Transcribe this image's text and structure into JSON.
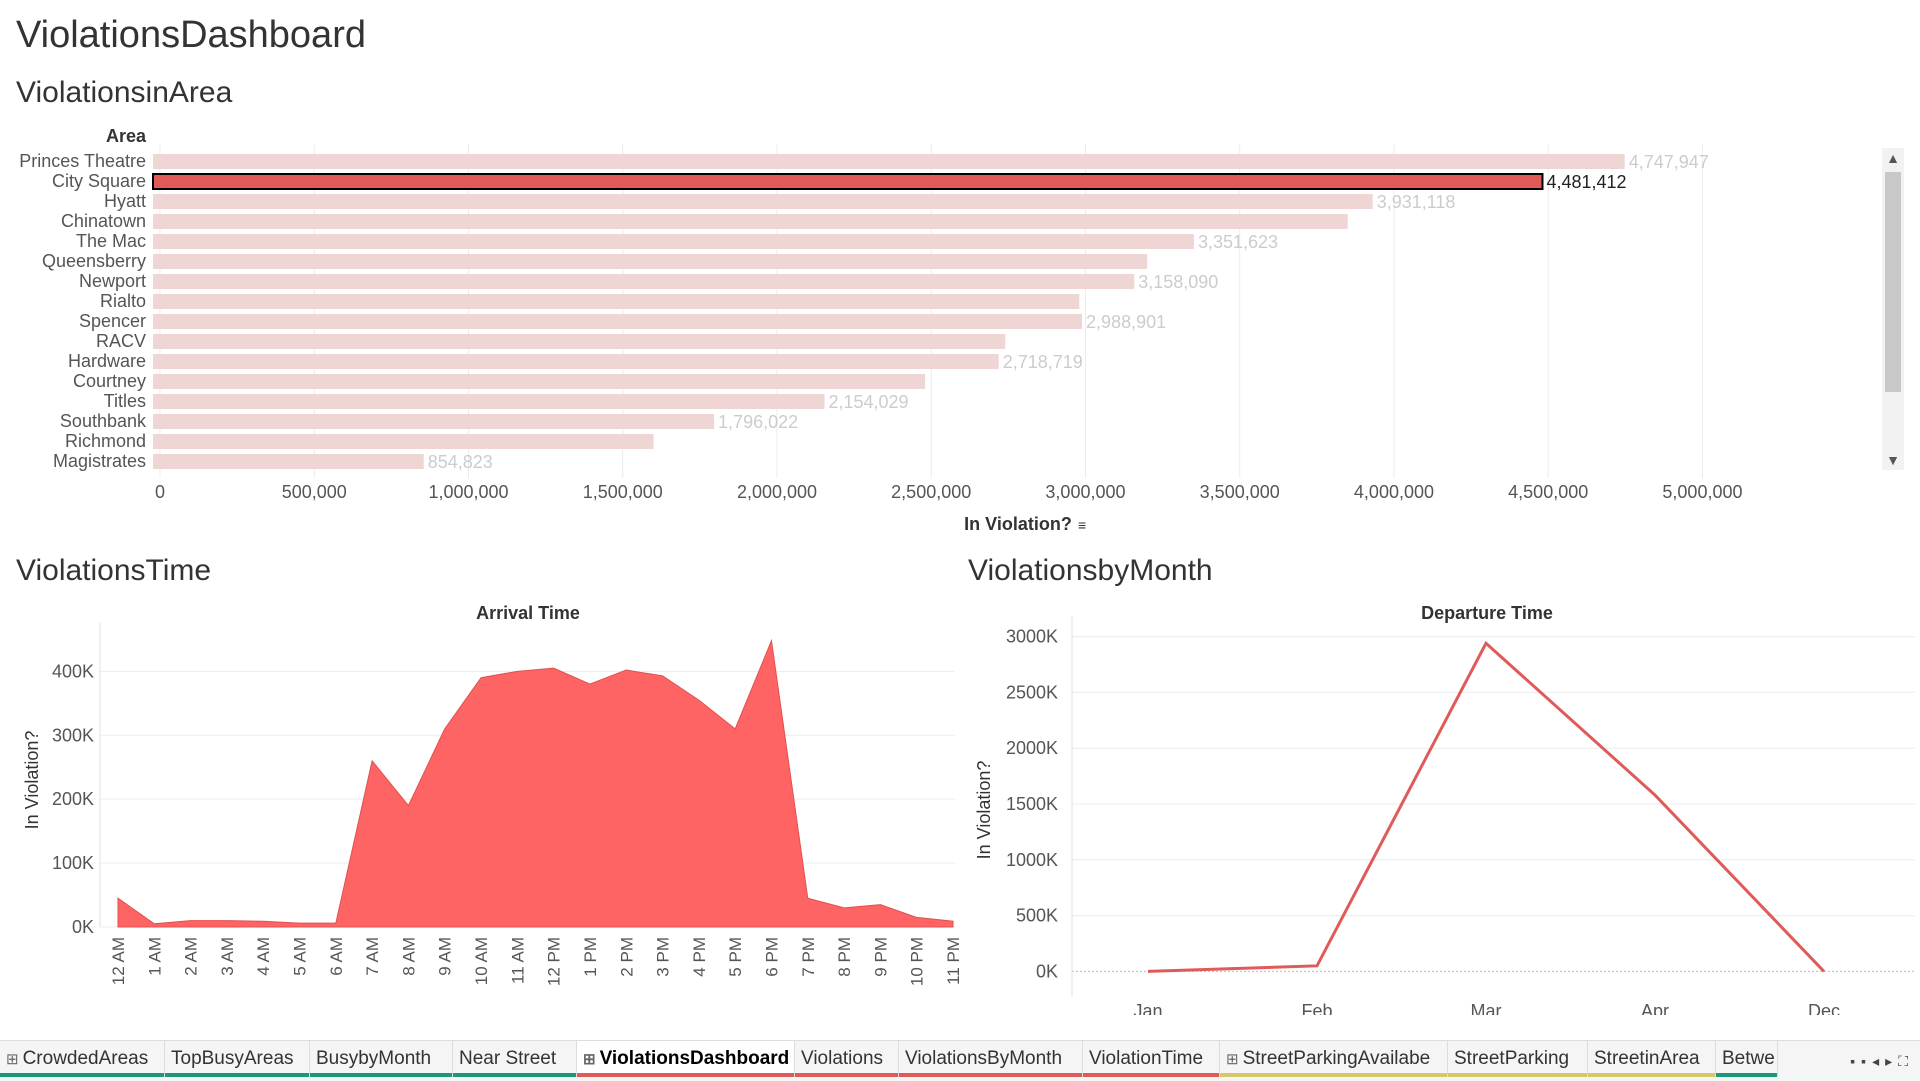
{
  "dashboard_title": "ViolationsDashboard",
  "panels": {
    "area_title": "ViolationsinArea",
    "time_title": "ViolationsTime",
    "month_title": "ViolationsbyMonth"
  },
  "colors": {
    "accent": "#e05a5a",
    "area_fill": "#ff6464",
    "bar_faded": "#f0d5d5",
    "label_faded": "#cccccc"
  },
  "chart_data": [
    {
      "type": "bar",
      "orientation": "horizontal",
      "row_header": "Area",
      "xlabel": "In Violation?",
      "categories": [
        "Princes Theatre",
        "City Square",
        "Hyatt",
        "Chinatown",
        "The Mac",
        "Queensberry",
        "Newport",
        "Rialto",
        "Spencer",
        "RACV",
        "Hardware",
        "Courtney",
        "Titles",
        "Southbank",
        "Richmond",
        "Magistrates"
      ],
      "values": [
        4747947,
        4481412,
        3931118,
        3850000,
        3351623,
        3200000,
        3158090,
        2980000,
        2988901,
        2740000,
        2718719,
        2480000,
        2154029,
        1796022,
        1600000,
        854823
      ],
      "value_labels": [
        "4,747,947",
        "4,481,412",
        "3,931,118",
        "",
        "3,351,623",
        "",
        "3,158,090",
        "",
        "2,988,901",
        "",
        "2,718,719",
        "",
        "2,154,029",
        "1,796,022",
        "",
        "854,823"
      ],
      "highlighted": "City Square",
      "xlim": [
        0,
        5300000
      ],
      "xticks": [
        0,
        500000,
        1000000,
        1500000,
        2000000,
        2500000,
        3000000,
        3500000,
        4000000,
        4500000,
        5000000
      ],
      "xtick_labels": [
        "0",
        "500,000",
        "1,000,000",
        "1,500,000",
        "2,000,000",
        "2,500,000",
        "3,000,000",
        "3,500,000",
        "4,000,000",
        "4,500,000",
        "5,000,000"
      ],
      "grid": true
    },
    {
      "type": "area",
      "title": "Arrival Time",
      "ylabel": "In Violation?",
      "x": [
        "12 AM",
        "1 AM",
        "2 AM",
        "3 AM",
        "4 AM",
        "5 AM",
        "6 AM",
        "7 AM",
        "8 AM",
        "9 AM",
        "10 AM",
        "11 AM",
        "12 PM",
        "1 PM",
        "2 PM",
        "3 PM",
        "4 PM",
        "5 PM",
        "6 PM",
        "7 PM",
        "8 PM",
        "9 PM",
        "10 PM",
        "11 PM"
      ],
      "values": [
        45000,
        5000,
        10000,
        10000,
        9000,
        6000,
        6000,
        260000,
        190000,
        310000,
        390000,
        400000,
        405000,
        380000,
        402000,
        393000,
        355000,
        310000,
        448000,
        45000,
        30000,
        35000,
        15000,
        9000
      ],
      "ylim": [
        0,
        460000
      ],
      "yticks": [
        0,
        100000,
        200000,
        300000,
        400000
      ],
      "ytick_labels": [
        "0K",
        "100K",
        "200K",
        "300K",
        "400K"
      ],
      "grid": true
    },
    {
      "type": "line",
      "title": "Departure Time",
      "ylabel": "In Violation?",
      "x": [
        "Jan",
        "Feb",
        "Mar",
        "Apr",
        "Dec"
      ],
      "values": [
        0,
        50000,
        2940000,
        1580000,
        0
      ],
      "ylim": [
        -50000,
        3050000
      ],
      "yticks": [
        0,
        500000,
        1000000,
        1500000,
        2000000,
        2500000,
        3000000
      ],
      "ytick_labels": [
        "0K",
        "500K",
        "1000K",
        "1500K",
        "2000K",
        "2500K",
        "3000K"
      ],
      "grid": true
    }
  ],
  "tabs": [
    {
      "label": "CrowdedAreas",
      "color": "#1a9a7a",
      "grid": true,
      "active": false
    },
    {
      "label": "TopBusyAreas",
      "color": "#1a9a7a",
      "grid": false,
      "active": false
    },
    {
      "label": "BusybyMonth",
      "color": "#1a9a7a",
      "grid": false,
      "active": false
    },
    {
      "label": "Near Street",
      "color": "#1a9a7a",
      "grid": false,
      "active": false
    },
    {
      "label": "ViolationsDashboard",
      "color": "#e05a5a",
      "grid": true,
      "active": true
    },
    {
      "label": "Violations",
      "color": "#e05a5a",
      "grid": false,
      "active": false
    },
    {
      "label": "ViolationsByMonth",
      "color": "#e05a5a",
      "grid": false,
      "active": false
    },
    {
      "label": "ViolationTime",
      "color": "#e05a5a",
      "grid": false,
      "active": false
    },
    {
      "label": "StreetParkingAvailabe",
      "color": "#d8c76a",
      "grid": true,
      "active": false
    },
    {
      "label": "StreetParking",
      "color": "#d8c76a",
      "grid": false,
      "active": false
    },
    {
      "label": "StreetinArea",
      "color": "#d8c76a",
      "grid": false,
      "active": false
    },
    {
      "label": "Betwe",
      "color": "#1a9a7a",
      "grid": false,
      "active": false
    }
  ]
}
